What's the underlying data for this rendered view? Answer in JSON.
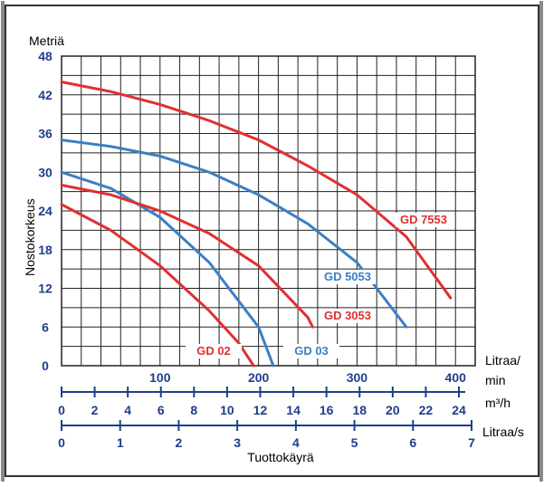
{
  "chart_data": {
    "type": "line",
    "ylabel_top": "Metriä",
    "ylabel_side": "Nostokorkeus",
    "xlabel": "Tuottokäyrä",
    "ylim": [
      0,
      48
    ],
    "yticks": [
      "48",
      "42",
      "36",
      "30",
      "24",
      "18",
      "12",
      "6",
      "0"
    ],
    "x_range_lpm": [
      0,
      400
    ],
    "axes": [
      {
        "unit_label": [
          "Litraa/",
          "min"
        ],
        "ticks": [
          "100",
          "200",
          "300",
          "400"
        ]
      },
      {
        "unit_label": [
          "m³/h"
        ],
        "ticks": [
          "0",
          "2",
          "4",
          "6",
          "8",
          "10",
          "12",
          "14",
          "16",
          "18",
          "20",
          "22",
          "24"
        ]
      },
      {
        "unit_label": [
          "Litraa/s"
        ],
        "ticks": [
          "0",
          "1",
          "2",
          "3",
          "4",
          "5",
          "6",
          "7"
        ]
      }
    ],
    "grid": true,
    "series": [
      {
        "name": "GD 02",
        "color": "#e03030",
        "x": [
          0,
          50,
          100,
          150,
          180,
          195
        ],
        "y": [
          25,
          21,
          15.5,
          8.5,
          3.5,
          0
        ]
      },
      {
        "name": "GD 03",
        "color": "#3a7fc4",
        "x": [
          0,
          50,
          100,
          150,
          200,
          215
        ],
        "y": [
          30,
          27.5,
          23,
          16,
          6,
          0
        ]
      },
      {
        "name": "GD 3053",
        "color": "#e03030",
        "x": [
          0,
          50,
          100,
          150,
          200,
          250,
          255
        ],
        "y": [
          28,
          26.5,
          24,
          20.5,
          15.5,
          7.5,
          6
        ]
      },
      {
        "name": "GD 5053",
        "color": "#3a7fc4",
        "x": [
          0,
          50,
          100,
          150,
          200,
          250,
          300,
          350
        ],
        "y": [
          35,
          34,
          32.5,
          30,
          26.5,
          22,
          16,
          6
        ]
      },
      {
        "name": "GD 7553",
        "color": "#e03030",
        "x": [
          0,
          50,
          100,
          150,
          200,
          250,
          300,
          350,
          395
        ],
        "y": [
          44,
          42.5,
          40.5,
          38,
          35,
          31,
          26.5,
          20,
          10.5
        ]
      }
    ]
  }
}
